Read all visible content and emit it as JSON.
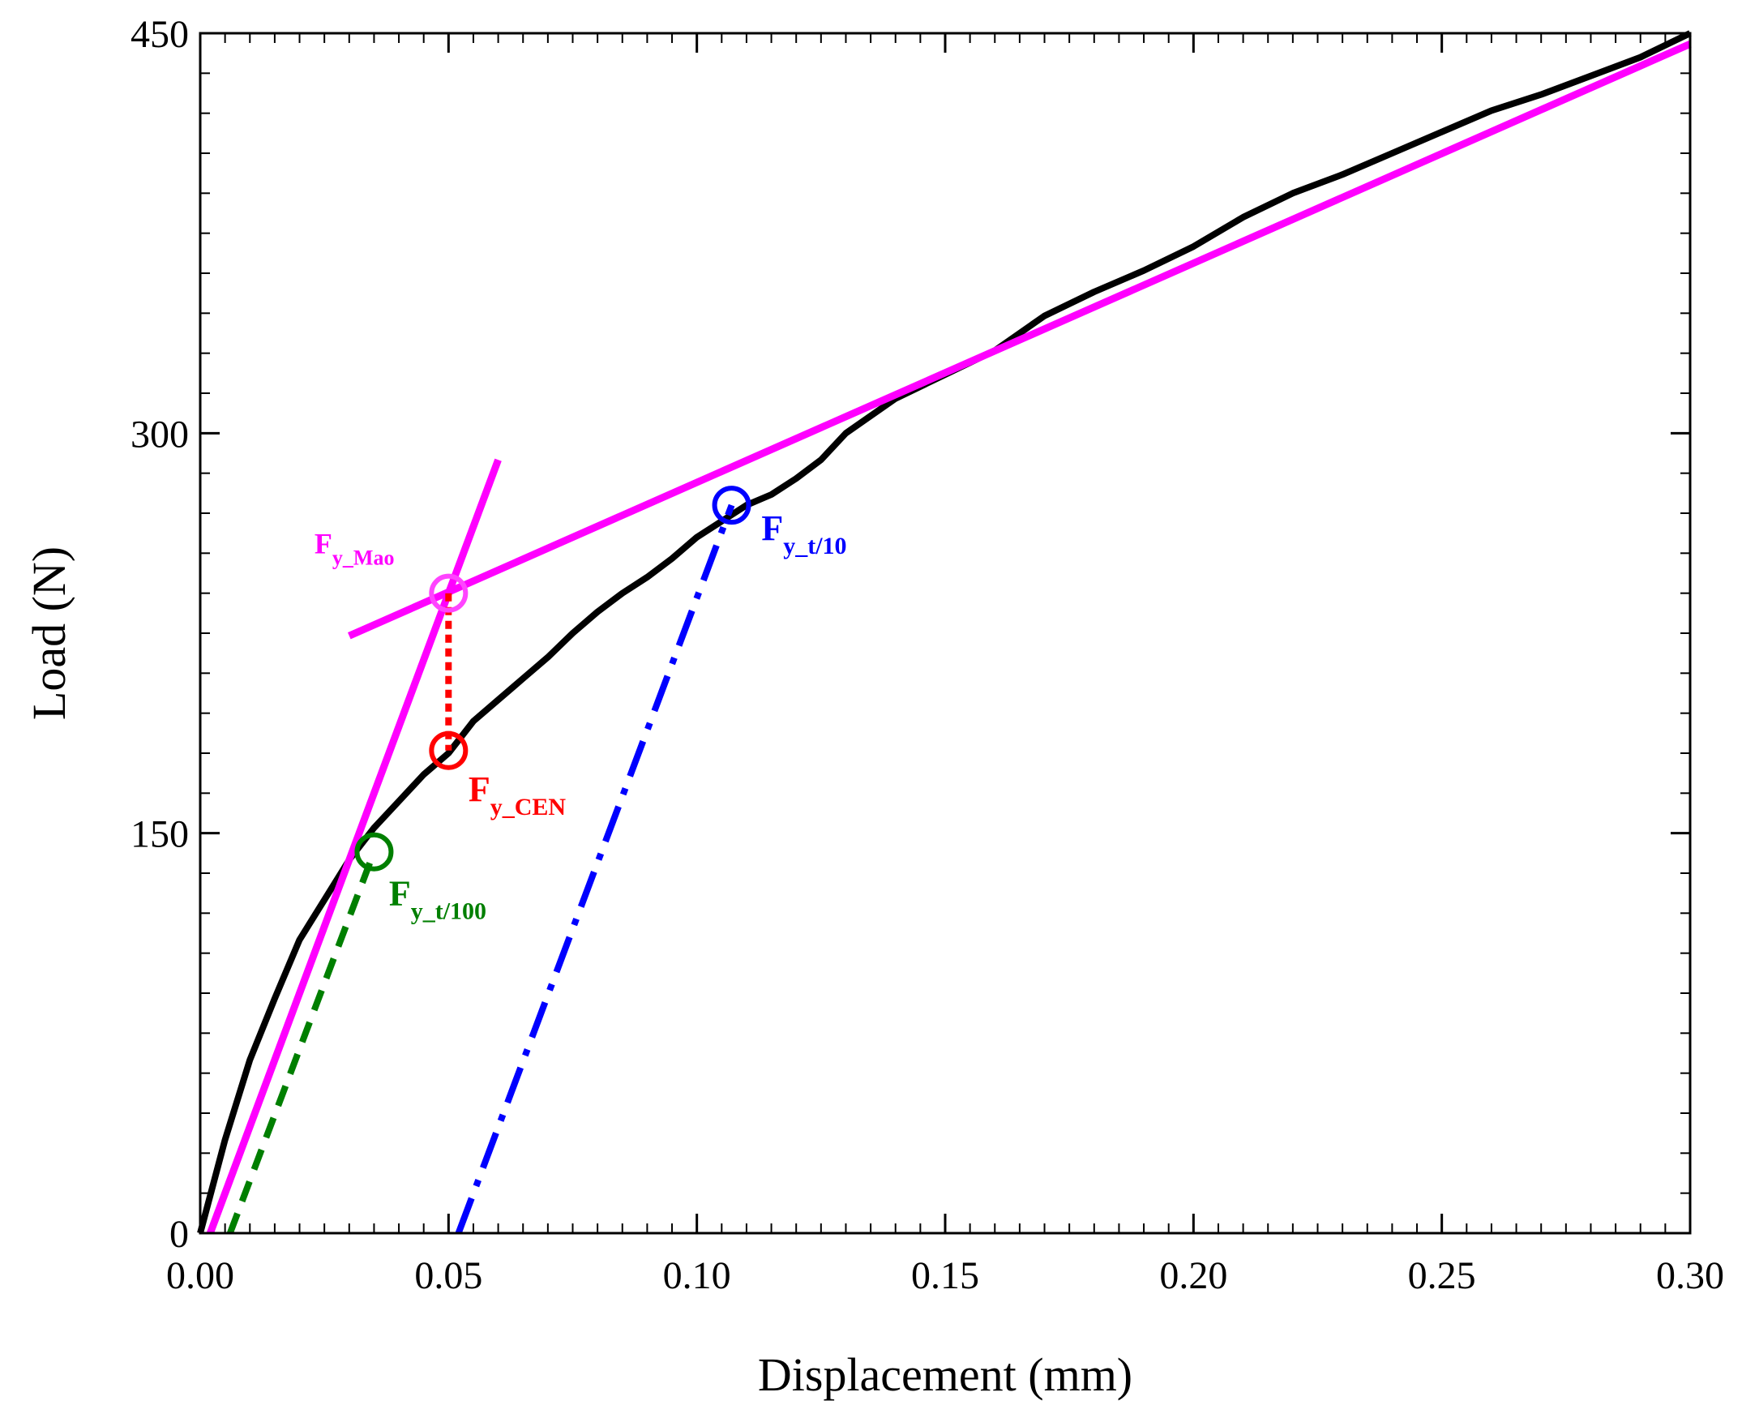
{
  "chart_data": {
    "type": "line",
    "title": "",
    "xlabel": "Displacement (mm)",
    "ylabel": "Load (N)",
    "xlim": [
      0,
      0.3
    ],
    "ylim": [
      0,
      450
    ],
    "xticks": [
      0.0,
      0.05,
      0.1,
      0.15,
      0.2,
      0.25,
      0.3
    ],
    "xtick_labels": [
      "0.00",
      "0.05",
      "0.10",
      "0.15",
      "0.20",
      "0.25",
      "0.30"
    ],
    "yticks": [
      0,
      150,
      300,
      450
    ],
    "ytick_labels": [
      "0",
      "150",
      "300",
      "450"
    ],
    "x_minor_step": 0.005,
    "y_minor_step": 15,
    "grid": false,
    "series": [
      {
        "name": "Load-displacement curve",
        "color": "#000000",
        "style": "solid",
        "x": [
          0,
          0.005,
          0.01,
          0.015,
          0.02,
          0.025,
          0.03,
          0.035,
          0.04,
          0.045,
          0.05,
          0.055,
          0.06,
          0.065,
          0.07,
          0.075,
          0.08,
          0.085,
          0.09,
          0.095,
          0.1,
          0.105,
          0.11,
          0.115,
          0.12,
          0.125,
          0.13,
          0.14,
          0.15,
          0.16,
          0.17,
          0.18,
          0.19,
          0.2,
          0.21,
          0.22,
          0.23,
          0.24,
          0.25,
          0.26,
          0.27,
          0.28,
          0.29,
          0.3
        ],
        "y": [
          0,
          35,
          65,
          88,
          110,
          125,
          140,
          152,
          162,
          172,
          180,
          192,
          200,
          208,
          216,
          225,
          233,
          240,
          246,
          253,
          261,
          267,
          273,
          277,
          283,
          290,
          300,
          313,
          322,
          331,
          344,
          353,
          361,
          370,
          381,
          390,
          397,
          405,
          413,
          421,
          427,
          434,
          441,
          450
        ]
      },
      {
        "name": "Initial stiffness line",
        "color": "#ff00ff",
        "style": "solid",
        "x": [
          0.002,
          0.06
        ],
        "y": [
          0,
          290
        ]
      },
      {
        "name": "Post-yield stiffness line",
        "color": "#ff00ff",
        "style": "solid",
        "x": [
          0.03,
          0.3
        ],
        "y": [
          224,
          446
        ]
      },
      {
        "name": "Offset line t/100",
        "color": "#007f00",
        "style": "dashed",
        "x": [
          0.006,
          0.035
        ],
        "y": [
          0,
          143
        ]
      },
      {
        "name": "Offset line t/10",
        "color": "#0000ff",
        "style": "dashdot",
        "x": [
          0.052,
          0.107
        ],
        "y": [
          0,
          273
        ]
      },
      {
        "name": "Vertical projection",
        "color": "#ff0000",
        "style": "dotted",
        "x": [
          0.05,
          0.05
        ],
        "y": [
          240,
          181
        ]
      }
    ],
    "markers": [
      {
        "name": "F_y_Mao",
        "x": 0.05,
        "y": 240,
        "color": "#ff44ff"
      },
      {
        "name": "F_y_CEN",
        "x": 0.05,
        "y": 181,
        "color": "#ff0000"
      },
      {
        "name": "F_y_t/100",
        "x": 0.035,
        "y": 143,
        "color": "#007f00"
      },
      {
        "name": "F_y_t/10",
        "x": 0.107,
        "y": 273,
        "color": "#0000ff"
      }
    ],
    "annotations": [
      {
        "main": "F",
        "sub": "y_Mao",
        "color": "#ff00ff",
        "x": 0.023,
        "y": 255,
        "size": "small"
      },
      {
        "main": "F",
        "sub": "y_CEN",
        "color": "#ff0000",
        "x": 0.054,
        "y": 162,
        "size": "large"
      },
      {
        "main": "F",
        "sub": "y_t/100",
        "color": "#007f00",
        "x": 0.038,
        "y": 123,
        "size": "large"
      },
      {
        "main": "F",
        "sub": "y_t/10",
        "color": "#0000ff",
        "x": 0.113,
        "y": 260,
        "size": "large"
      }
    ]
  }
}
